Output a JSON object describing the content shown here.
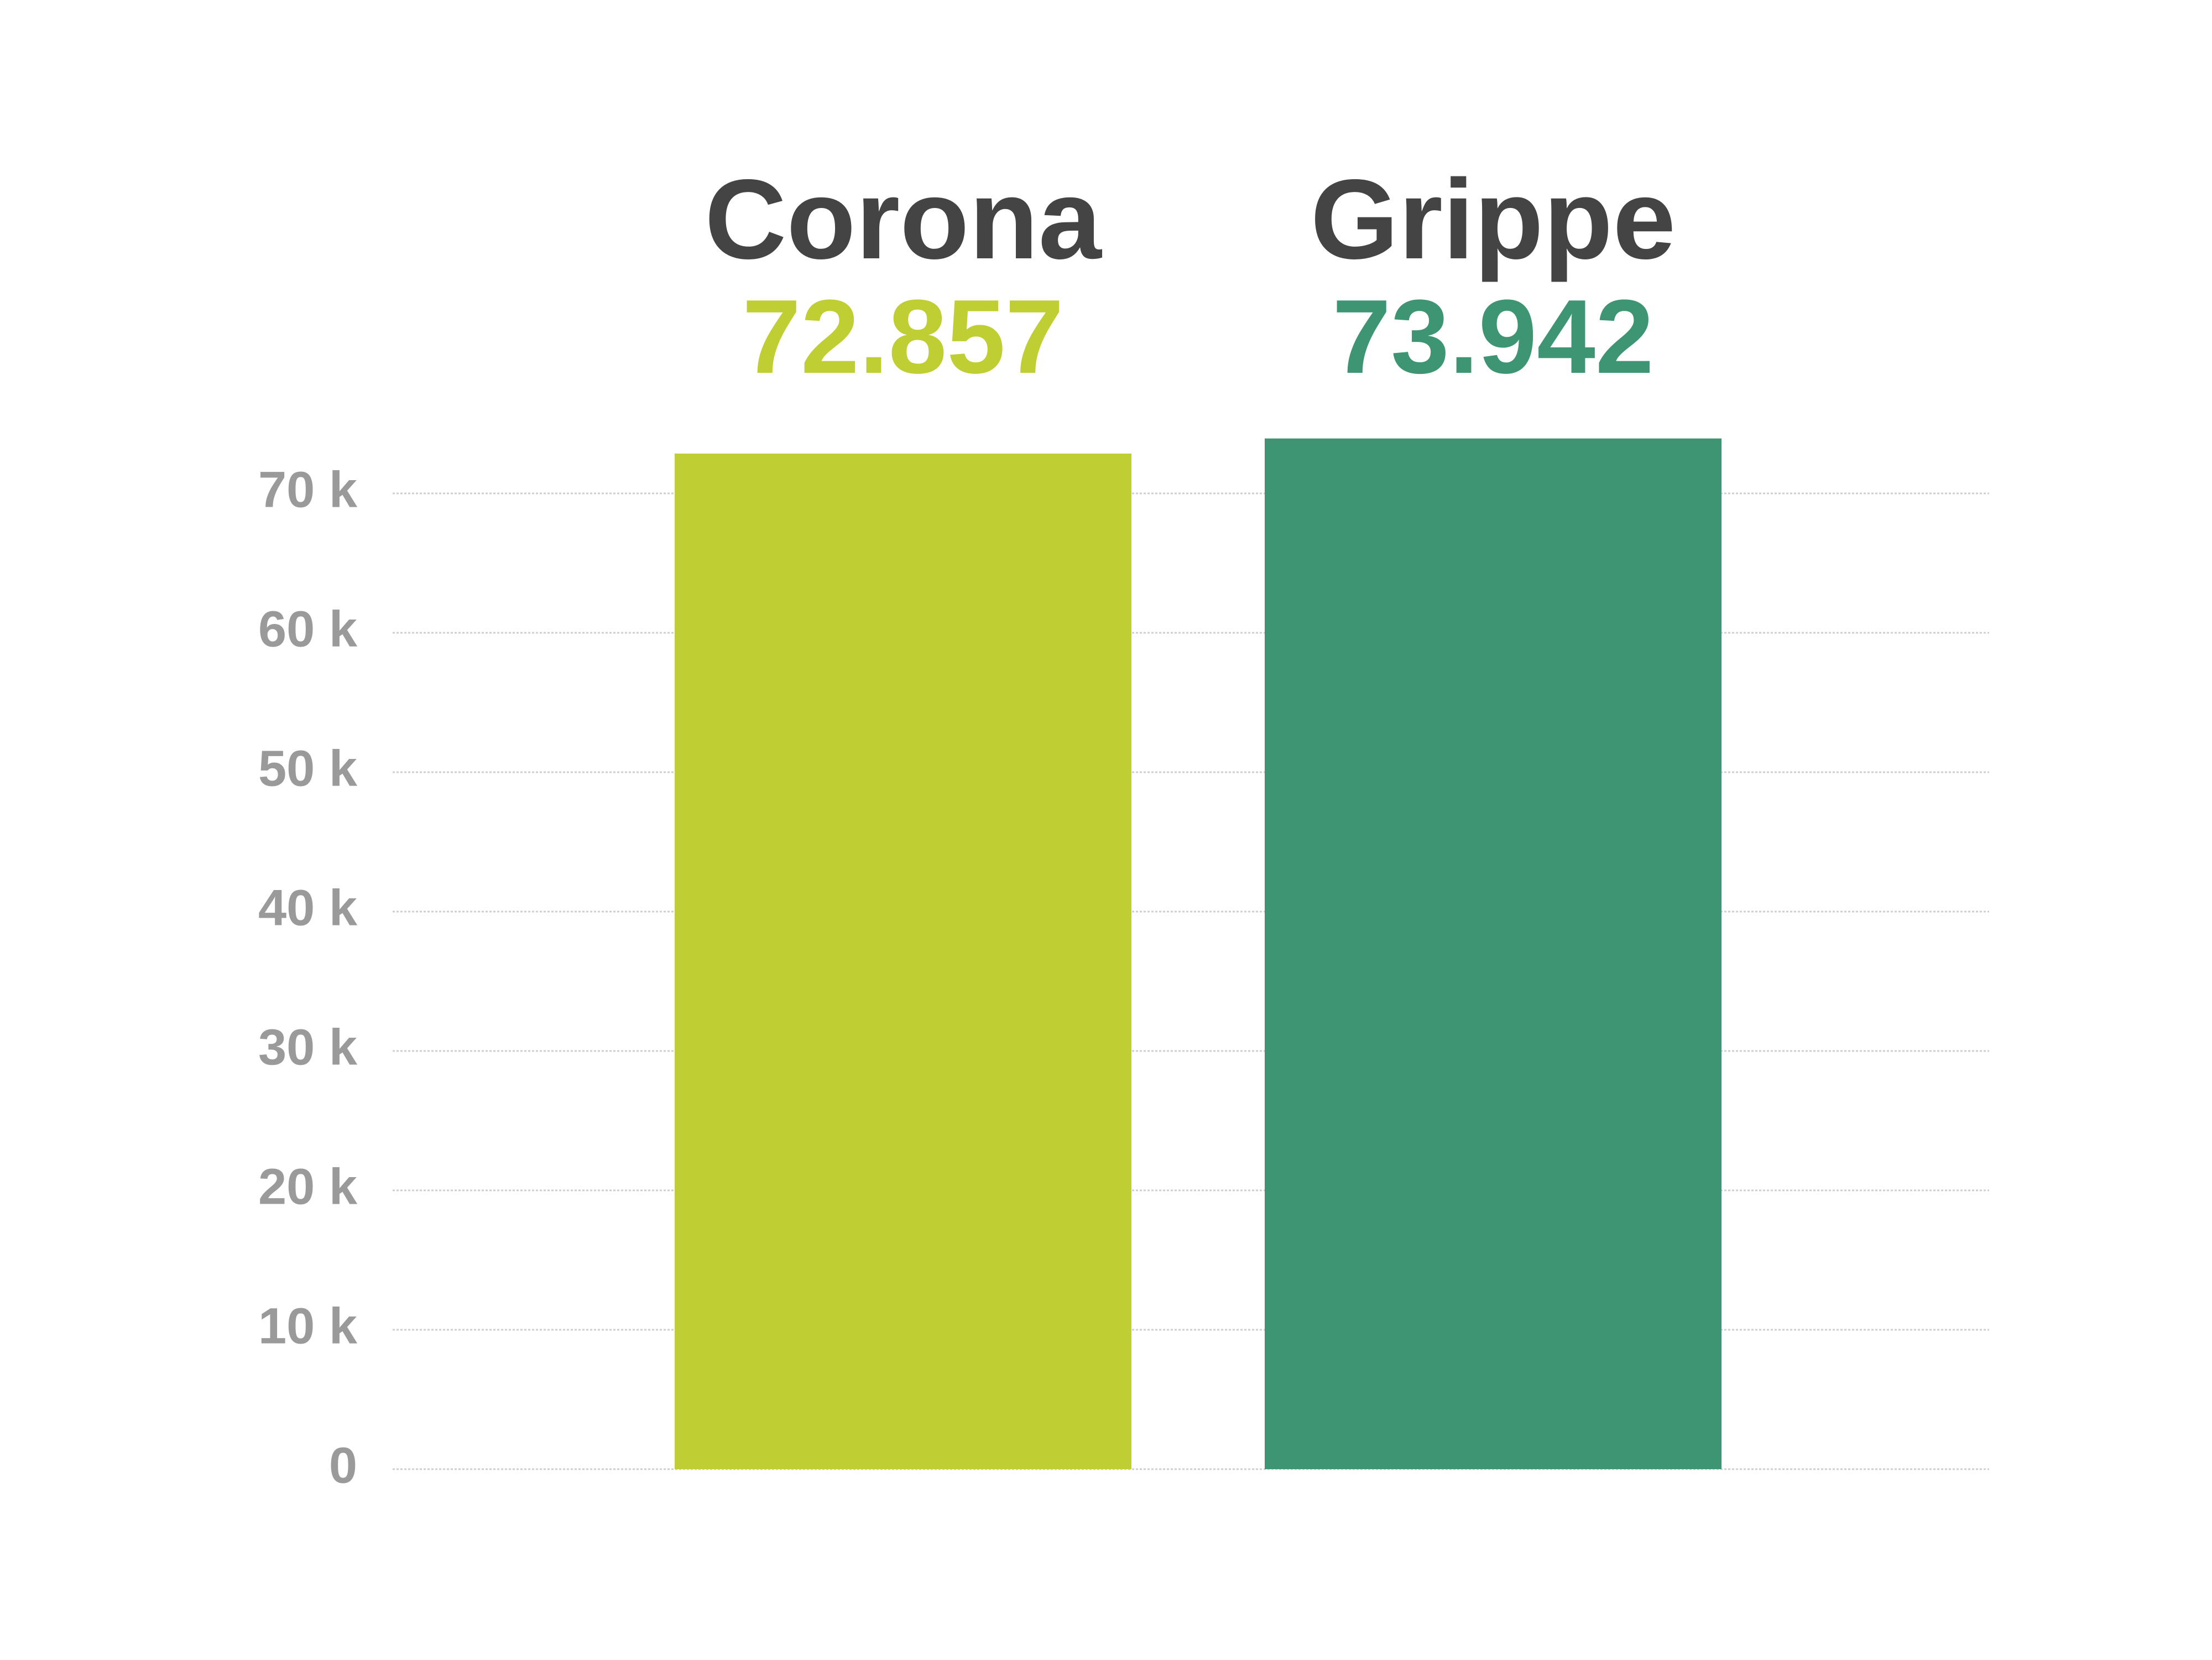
{
  "chart_data": {
    "type": "bar",
    "categories": [
      "Corona",
      "Grippe"
    ],
    "values": [
      72857,
      73942
    ],
    "value_labels": [
      "72.857",
      "73.942"
    ],
    "colors": [
      "#bfcf33",
      "#3d9574"
    ],
    "ylim": [
      0,
      70000
    ],
    "yticks": [
      0,
      {
        "value": 10000,
        "label": "10 k"
      },
      {
        "value": 20000,
        "label": "20 k"
      },
      {
        "value": 30000,
        "label": "30 k"
      },
      {
        "value": 40000,
        "label": "40 k"
      },
      {
        "value": 50000,
        "label": "50 k"
      },
      {
        "value": 60000,
        "label": "60 k"
      },
      {
        "value": 70000,
        "label": "70 k"
      }
    ],
    "grid": true
  }
}
